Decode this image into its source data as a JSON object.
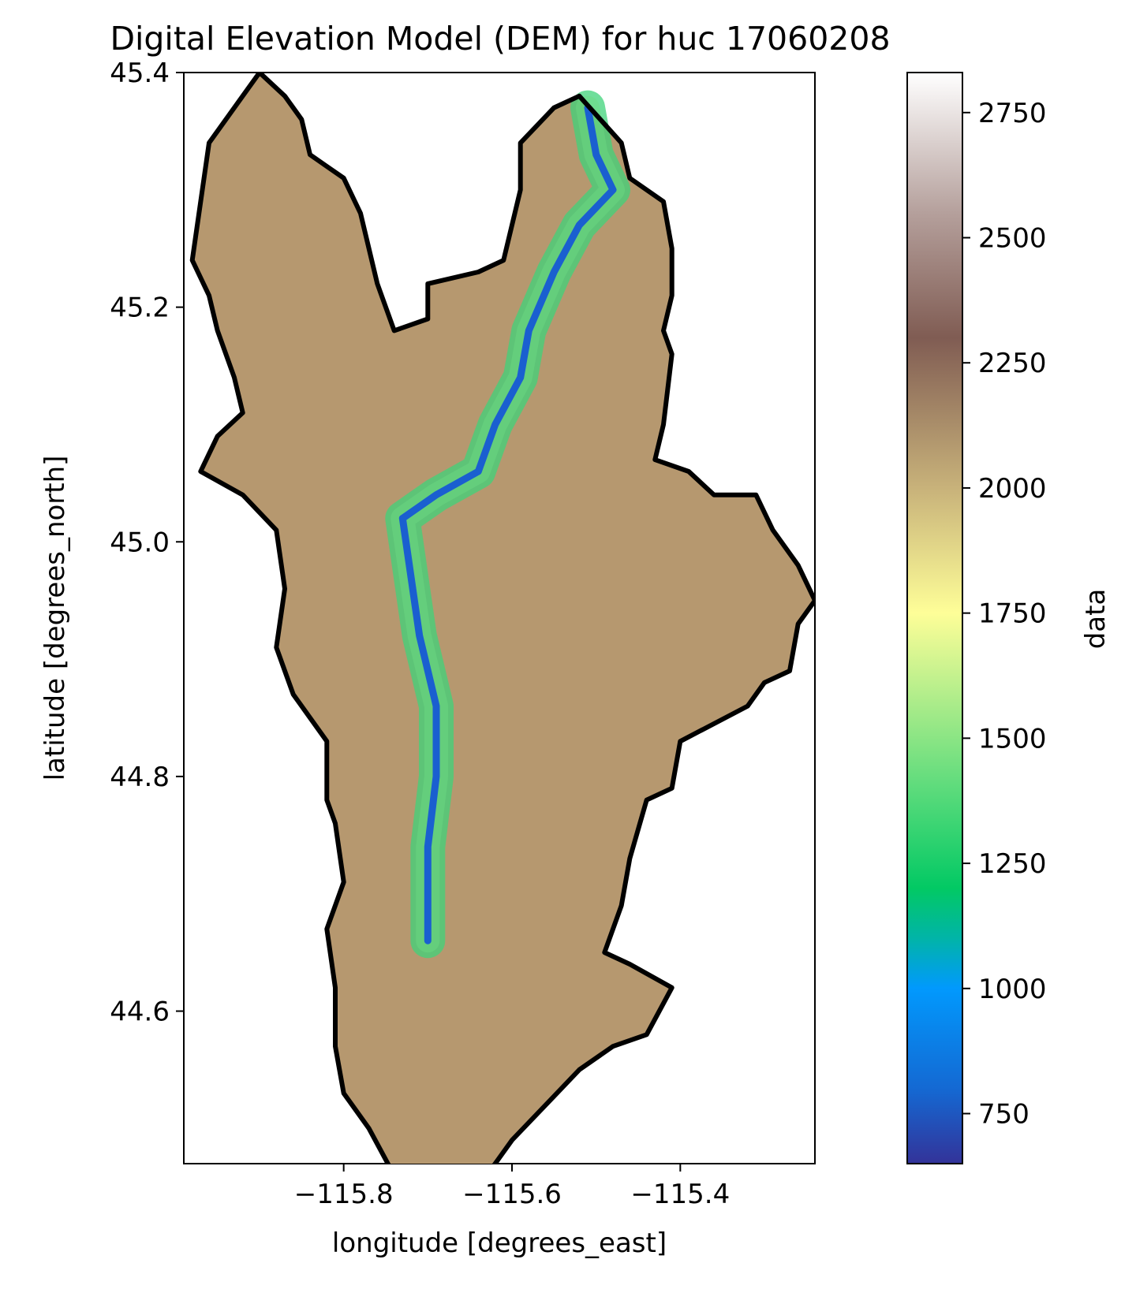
{
  "chart_data": {
    "type": "heatmap",
    "title": "Digital Elevation Model (DEM) for huc 17060208",
    "xlabel": "longitude [degrees_east]",
    "ylabel": "latitude [degrees_north]",
    "xlim": [
      -115.99,
      -115.24
    ],
    "ylim": [
      44.47,
      45.4
    ],
    "xticks": [
      -115.8,
      -115.6,
      -115.4
    ],
    "xtick_labels": [
      "−115.8",
      "−115.6",
      "−115.4"
    ],
    "yticks": [
      45.4,
      45.2,
      45.0,
      44.8,
      44.6
    ],
    "ytick_labels": [
      "45.4",
      "45.2",
      "45.0",
      "44.8",
      "44.6"
    ],
    "grid": false,
    "colormap": "terrain",
    "colorbar": {
      "label": "data",
      "range": [
        650,
        2830
      ],
      "ticks": [
        750,
        1000,
        1250,
        1500,
        1750,
        2000,
        2250,
        2500,
        2750
      ],
      "tick_labels": [
        "750",
        "1000",
        "1250",
        "1500",
        "1750",
        "2000",
        "2250",
        "2500",
        "2750"
      ],
      "stops": [
        {
          "value": 650,
          "color": "#333399"
        },
        {
          "value": 800,
          "color": "#1469d3"
        },
        {
          "value": 1000,
          "color": "#0199fd"
        },
        {
          "value": 1100,
          "color": "#01b4a8"
        },
        {
          "value": 1200,
          "color": "#02c964"
        },
        {
          "value": 1420,
          "color": "#66dd7e"
        },
        {
          "value": 1750,
          "color": "#fefe98"
        },
        {
          "value": 2000,
          "color": "#c8b27a"
        },
        {
          "value": 2300,
          "color": "#805c53"
        },
        {
          "value": 2550,
          "color": "#b5a09c"
        },
        {
          "value": 2830,
          "color": "#ffffff"
        }
      ]
    },
    "basin_outline": [
      [
        -115.98,
        45.24
      ],
      [
        -115.96,
        45.34
      ],
      [
        -115.93,
        45.37
      ],
      [
        -115.9,
        45.4
      ],
      [
        -115.87,
        45.38
      ],
      [
        -115.85,
        45.36
      ],
      [
        -115.84,
        45.33
      ],
      [
        -115.82,
        45.32
      ],
      [
        -115.8,
        45.31
      ],
      [
        -115.78,
        45.28
      ],
      [
        -115.76,
        45.22
      ],
      [
        -115.74,
        45.18
      ],
      [
        -115.7,
        45.19
      ],
      [
        -115.7,
        45.22
      ],
      [
        -115.64,
        45.23
      ],
      [
        -115.61,
        45.24
      ],
      [
        -115.59,
        45.3
      ],
      [
        -115.59,
        45.34
      ],
      [
        -115.55,
        45.37
      ],
      [
        -115.52,
        45.38
      ],
      [
        -115.47,
        45.34
      ],
      [
        -115.46,
        45.31
      ],
      [
        -115.42,
        45.29
      ],
      [
        -115.41,
        45.25
      ],
      [
        -115.41,
        45.21
      ],
      [
        -115.42,
        45.18
      ],
      [
        -115.41,
        45.16
      ],
      [
        -115.42,
        45.1
      ],
      [
        -115.43,
        45.07
      ],
      [
        -115.39,
        45.06
      ],
      [
        -115.36,
        45.04
      ],
      [
        -115.31,
        45.04
      ],
      [
        -115.29,
        45.01
      ],
      [
        -115.26,
        44.98
      ],
      [
        -115.24,
        44.95
      ],
      [
        -115.26,
        44.93
      ],
      [
        -115.27,
        44.89
      ],
      [
        -115.3,
        44.88
      ],
      [
        -115.32,
        44.86
      ],
      [
        -115.4,
        44.83
      ],
      [
        -115.41,
        44.79
      ],
      [
        -115.44,
        44.78
      ],
      [
        -115.46,
        44.73
      ],
      [
        -115.47,
        44.69
      ],
      [
        -115.49,
        44.65
      ],
      [
        -115.46,
        44.64
      ],
      [
        -115.41,
        44.62
      ],
      [
        -115.44,
        44.58
      ],
      [
        -115.48,
        44.57
      ],
      [
        -115.52,
        44.55
      ],
      [
        -115.56,
        44.52
      ],
      [
        -115.6,
        44.49
      ],
      [
        -115.63,
        44.46
      ],
      [
        -115.67,
        44.46
      ],
      [
        -115.71,
        44.44
      ],
      [
        -115.74,
        44.46
      ],
      [
        -115.77,
        44.5
      ],
      [
        -115.8,
        44.53
      ],
      [
        -115.81,
        44.57
      ],
      [
        -115.81,
        44.62
      ],
      [
        -115.82,
        44.67
      ],
      [
        -115.8,
        44.71
      ],
      [
        -115.81,
        44.76
      ],
      [
        -115.82,
        44.78
      ],
      [
        -115.82,
        44.83
      ],
      [
        -115.86,
        44.87
      ],
      [
        -115.88,
        44.91
      ],
      [
        -115.87,
        44.96
      ],
      [
        -115.88,
        45.01
      ],
      [
        -115.92,
        45.04
      ],
      [
        -115.97,
        45.06
      ],
      [
        -115.95,
        45.09
      ],
      [
        -115.92,
        45.11
      ],
      [
        -115.93,
        45.14
      ],
      [
        -115.95,
        45.18
      ],
      [
        -115.96,
        45.21
      ],
      [
        -115.98,
        45.24
      ]
    ],
    "river_path": [
      [
        -115.51,
        45.37
      ],
      [
        -115.5,
        45.33
      ],
      [
        -115.48,
        45.3
      ],
      [
        -115.52,
        45.27
      ],
      [
        -115.55,
        45.23
      ],
      [
        -115.58,
        45.18
      ],
      [
        -115.59,
        45.14
      ],
      [
        -115.62,
        45.1
      ],
      [
        -115.64,
        45.06
      ],
      [
        -115.69,
        45.04
      ],
      [
        -115.73,
        45.02
      ],
      [
        -115.72,
        44.97
      ],
      [
        -115.71,
        44.92
      ],
      [
        -115.69,
        44.86
      ],
      [
        -115.69,
        44.8
      ],
      [
        -115.7,
        44.74
      ],
      [
        -115.7,
        44.66
      ]
    ]
  }
}
